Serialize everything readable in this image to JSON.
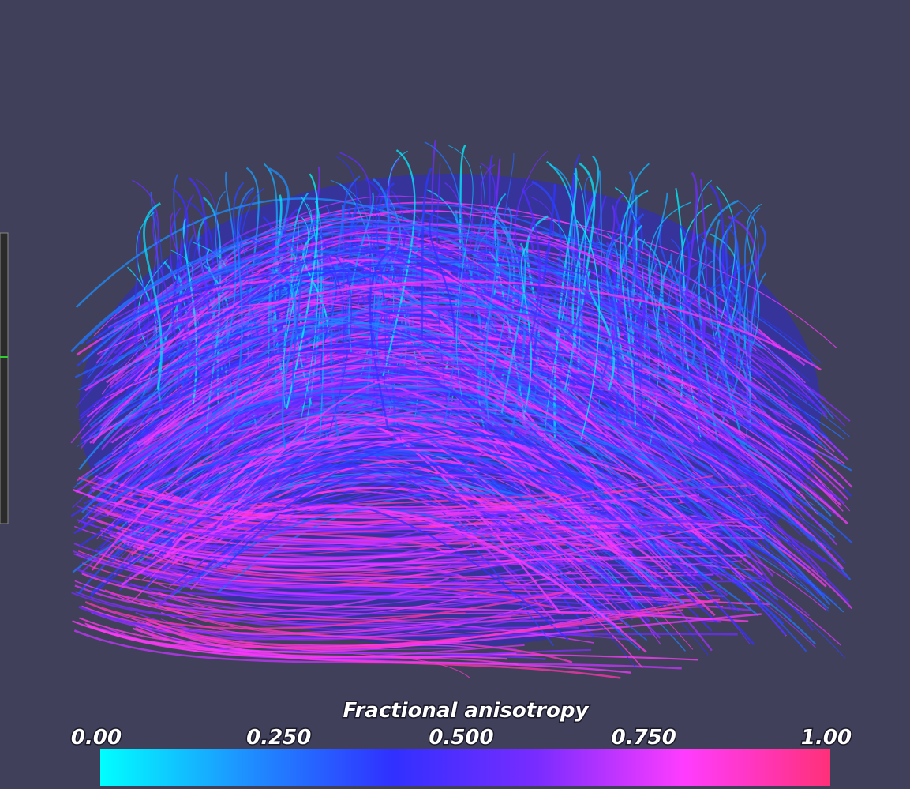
{
  "colorbar": {
    "title": "Fractional anisotropy",
    "range": [
      0,
      1
    ],
    "ticks": [
      {
        "value": 0,
        "label": "0.00"
      },
      {
        "value": 0.25,
        "label": "0.250"
      },
      {
        "value": 0.5,
        "label": "0.500"
      },
      {
        "value": 0.75,
        "label": "0.750"
      },
      {
        "value": 1,
        "label": "1.00"
      }
    ],
    "colors": [
      "#00ffff",
      "#1e90ff",
      "#3030ff",
      "#7a2cff",
      "#ff3cff",
      "#ff3078"
    ]
  }
}
